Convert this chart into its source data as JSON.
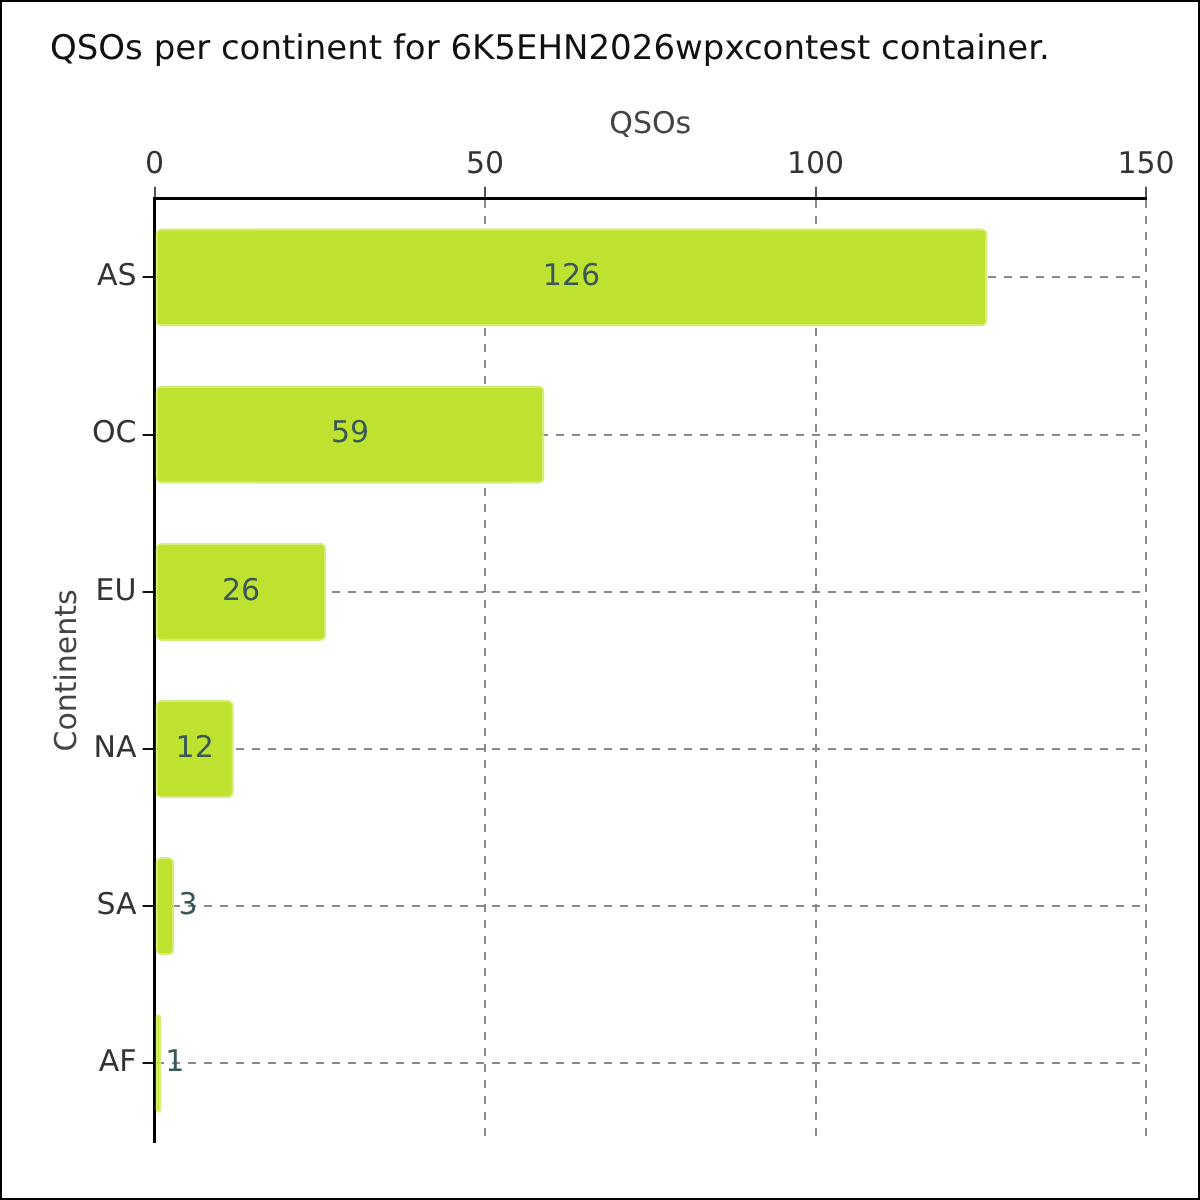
{
  "chart_data": {
    "type": "bar",
    "orientation": "horizontal",
    "title": "QSOs per continent for 6K5EHN2026wpxcontest container.",
    "xlabel": "QSOs",
    "ylabel": "Continents",
    "categories": [
      "AS",
      "OC",
      "EU",
      "NA",
      "SA",
      "AF"
    ],
    "values": [
      126,
      59,
      26,
      12,
      3,
      1
    ],
    "color": "#bee22f",
    "xlim": [
      0,
      150
    ],
    "xticks": [
      0,
      50,
      100,
      150
    ],
    "grid": true,
    "data_labels": true
  }
}
